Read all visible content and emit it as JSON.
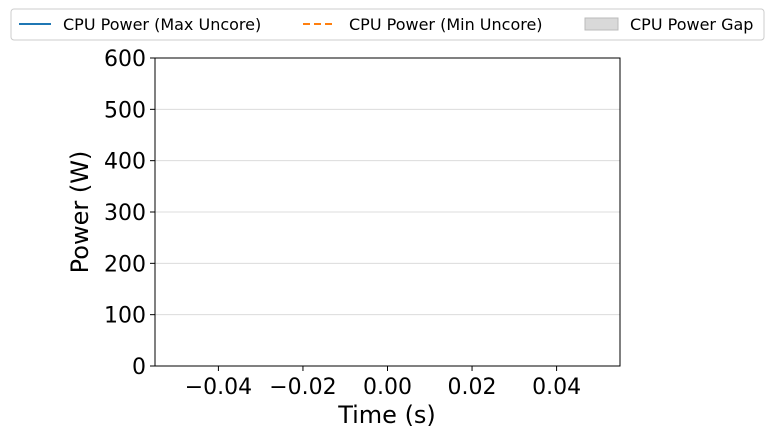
{
  "chart_data": {
    "type": "line",
    "title": "",
    "xlabel": "Time (s)",
    "ylabel": "Power (W)",
    "xlim": [
      -0.055,
      0.055
    ],
    "ylim": [
      0,
      600
    ],
    "x_ticks": [
      -0.04,
      -0.02,
      0.0,
      0.02,
      0.04
    ],
    "x_tick_labels": [
      "−0.04",
      "−0.02",
      "0.00",
      "0.02",
      "0.04"
    ],
    "y_ticks": [
      0,
      100,
      200,
      300,
      400,
      500,
      600
    ],
    "y_tick_labels": [
      "0",
      "100",
      "200",
      "300",
      "400",
      "500",
      "600"
    ],
    "grid": "y",
    "legend_position": "top",
    "series": [
      {
        "name": "CPU Power (Max Uncore)",
        "style": "solid",
        "color": "#1f77b4",
        "x": [],
        "y": []
      },
      {
        "name": "CPU Power (Min Uncore)",
        "style": "dashed",
        "color": "#ff7f0e",
        "x": [],
        "y": []
      },
      {
        "name": "CPU Power Gap",
        "style": "fill",
        "color": "#d9d9d9",
        "x": [],
        "y": []
      }
    ]
  }
}
